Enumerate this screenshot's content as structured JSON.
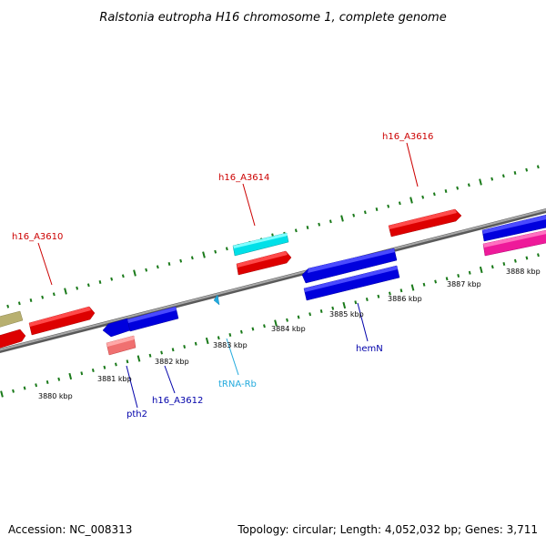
{
  "title": "Ralstonia eutropha H16 chromosome 1, complete genome",
  "footer": {
    "accession": "Accession: NC_008313",
    "summary": "Topology: circular; Length: 4,052,032 bp; Genes: 3,711"
  },
  "colors": {
    "backbone": "#8a8a8a",
    "ticks": "#1a7a1a",
    "forward_label": "#cc0000",
    "reverse_label": "#0000aa",
    "rna_label": "#22aadd"
  },
  "scale_labels": [
    "3880 kbp",
    "3881 kbp",
    "3882 kbp",
    "3883 kbp",
    "3884 kbp",
    "3885 kbp",
    "3886 kbp",
    "3887 kbp",
    "3888 kbp"
  ],
  "gene_labels": [
    {
      "text": "h16_A3610",
      "kind": "forward"
    },
    {
      "text": "h16_A3614",
      "kind": "forward"
    },
    {
      "text": "h16_A3616",
      "kind": "forward"
    },
    {
      "text": "pth2",
      "kind": "reverse"
    },
    {
      "text": "h16_A3612",
      "kind": "reverse"
    },
    {
      "text": "tRNA-Rb",
      "kind": "rna"
    },
    {
      "text": "hemN",
      "kind": "reverse"
    }
  ]
}
